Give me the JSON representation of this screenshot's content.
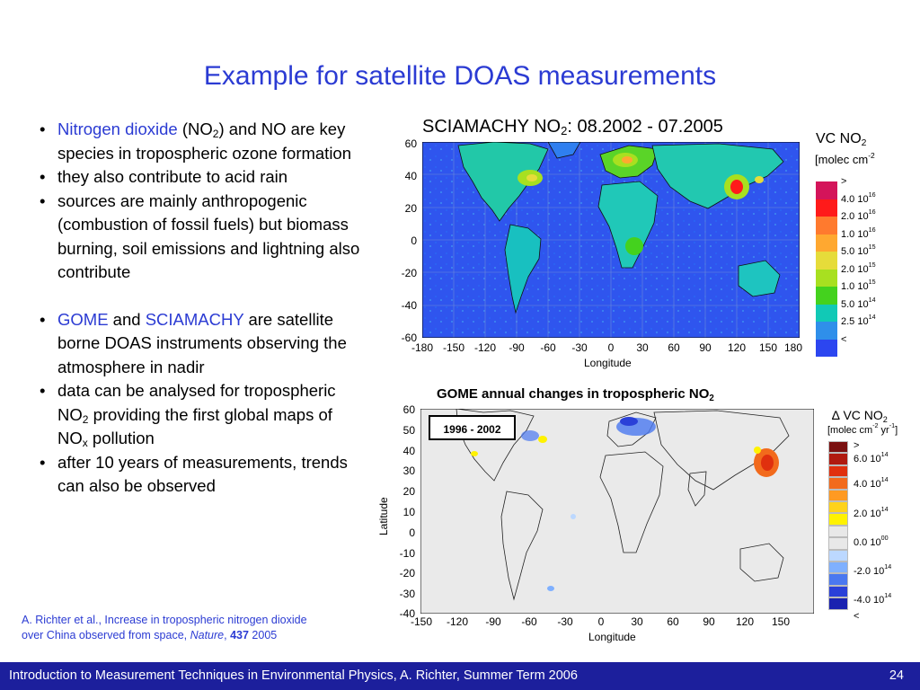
{
  "title": "Example for satellite DOAS measurements",
  "bullets": {
    "b1_colored": "Nitrogen dioxide",
    "b1_pre": " (NO",
    "b1_sub": "2",
    "b1_post": ") and NO are key species in tropospheric ozone formation",
    "b2": "they also contribute to acid rain",
    "b3": "sources are mainly anthropogenic (combustion of fossil fuels) but biomass burning, soil emissions and lightning also contribute",
    "b4_c1": "GOME",
    "b4_and": " and ",
    "b4_c2": "SCIAMACHY",
    "b4_post": " are satellite borne DOAS instruments observing the atmosphere in nadir",
    "b5_pre": "data can be analysed for tropospheric NO",
    "b5_sub": "2",
    "b5_mid": " providing the first global maps of NO",
    "b5_sub2": "x",
    "b5_post": " pollution",
    "b6": "after 10 years of measurements, trends can also be observed"
  },
  "reference": {
    "line1": "A. Richter et al., Increase in tropospheric nitrogen dioxide",
    "line2_pre": "over China observed from space, ",
    "journal": "Nature",
    "sep": ", ",
    "volume": "437",
    "year": " 2005"
  },
  "footer": {
    "text": "Introduction to Measurement Techniques in Environmental Physics, A. Richter, Summer Term 2006",
    "page": "24"
  },
  "map1": {
    "title_pre": "SCIAMACHY NO",
    "title_sub": "2",
    "title_post": ": 08.2002 - 07.2005",
    "y_ticks": [
      "60",
      "40",
      "20",
      "0",
      "-20",
      "-40",
      "-60"
    ],
    "x_ticks": [
      "-180",
      "-150",
      "-120",
      "-90",
      "-60",
      "-30",
      "0",
      "30",
      "60",
      "90",
      "120",
      "150",
      "180"
    ],
    "xlabel": "Longitude",
    "legend_title_pre": "VC NO",
    "legend_title_sub": "2",
    "legend_unit_pre": "[molec cm",
    "legend_unit_sup": "-2",
    "legend_labels": [
      ">",
      "4.0 10",
      "2.0 10",
      "1.0 10",
      "5.0 10",
      "2.0 10",
      "1.0 10",
      "5.0 10",
      "2.5 10",
      "<"
    ],
    "legend_exps": [
      "",
      "16",
      "16",
      "16",
      "15",
      "15",
      "15",
      "14",
      "14",
      ""
    ],
    "legend_colors": [
      "#d4145a",
      "#ff1a1a",
      "#ff7a2e",
      "#ffa830",
      "#e6dc3a",
      "#a8e020",
      "#44d21e",
      "#11c9b6",
      "#2f8fea",
      "#2c46f0"
    ]
  },
  "map2": {
    "title_pre": "GOME annual changes in tropospheric  NO",
    "title_sub": "2",
    "period": "1996 - 2002",
    "y_ticks": [
      "60",
      "50",
      "40",
      "30",
      "20",
      "10",
      "0",
      "-10",
      "-20",
      "-30",
      "-40"
    ],
    "x_ticks": [
      "-150",
      "-120",
      "-90",
      "-60",
      "-30",
      "0",
      "30",
      "60",
      "90",
      "120",
      "150"
    ],
    "xlabel": "Longitude",
    "ylabel": "Latitude",
    "legend_title": "∆ VC NO",
    "legend_title_sub": "2",
    "legend_unit": "[molec cm",
    "legend_unit_sup": "-2",
    "legend_unit_mid": " yr",
    "legend_unit_sup2": "-1",
    "legend_unit_end": "]",
    "legend_labels": [
      ">",
      "6.0 10",
      "4.0 10",
      "2.0 10",
      "0.0 10",
      "-2.0 10",
      "-4.0 10",
      "<"
    ],
    "legend_exps": [
      "",
      "14",
      "14",
      "14",
      "00",
      "14",
      "14",
      ""
    ],
    "legend_colors": [
      "#7a1010",
      "#b01a10",
      "#e0300e",
      "#f26a1c",
      "#ff9a22",
      "#ffd21a",
      "#fff200",
      "#e8e8e8",
      "#e8e8e8",
      "#bcd8ff",
      "#7fb0ff",
      "#4a78f0",
      "#2a40d8",
      "#1a22b0"
    ]
  }
}
